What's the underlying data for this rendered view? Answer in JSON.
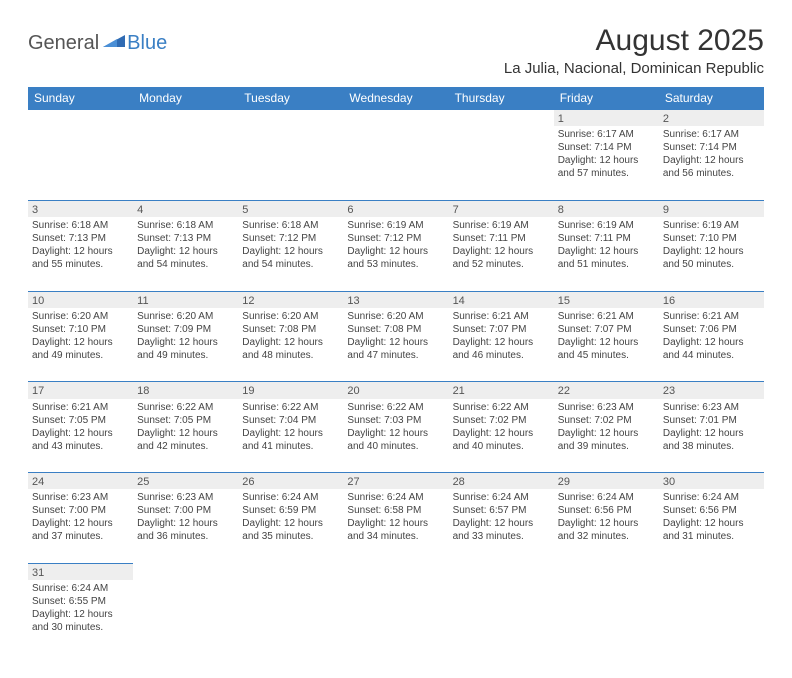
{
  "brand": {
    "general": "General",
    "blue": "Blue"
  },
  "title": "August 2025",
  "location": "La Julia, Nacional, Dominican Republic",
  "header_bg": "#3a7fc4",
  "weekdays": [
    "Sunday",
    "Monday",
    "Tuesday",
    "Wednesday",
    "Thursday",
    "Friday",
    "Saturday"
  ],
  "weeks": [
    [
      null,
      null,
      null,
      null,
      null,
      {
        "n": "1",
        "sr": "Sunrise: 6:17 AM",
        "ss": "Sunset: 7:14 PM",
        "d1": "Daylight: 12 hours",
        "d2": "and 57 minutes."
      },
      {
        "n": "2",
        "sr": "Sunrise: 6:17 AM",
        "ss": "Sunset: 7:14 PM",
        "d1": "Daylight: 12 hours",
        "d2": "and 56 minutes."
      }
    ],
    [
      {
        "n": "3",
        "sr": "Sunrise: 6:18 AM",
        "ss": "Sunset: 7:13 PM",
        "d1": "Daylight: 12 hours",
        "d2": "and 55 minutes."
      },
      {
        "n": "4",
        "sr": "Sunrise: 6:18 AM",
        "ss": "Sunset: 7:13 PM",
        "d1": "Daylight: 12 hours",
        "d2": "and 54 minutes."
      },
      {
        "n": "5",
        "sr": "Sunrise: 6:18 AM",
        "ss": "Sunset: 7:12 PM",
        "d1": "Daylight: 12 hours",
        "d2": "and 54 minutes."
      },
      {
        "n": "6",
        "sr": "Sunrise: 6:19 AM",
        "ss": "Sunset: 7:12 PM",
        "d1": "Daylight: 12 hours",
        "d2": "and 53 minutes."
      },
      {
        "n": "7",
        "sr": "Sunrise: 6:19 AM",
        "ss": "Sunset: 7:11 PM",
        "d1": "Daylight: 12 hours",
        "d2": "and 52 minutes."
      },
      {
        "n": "8",
        "sr": "Sunrise: 6:19 AM",
        "ss": "Sunset: 7:11 PM",
        "d1": "Daylight: 12 hours",
        "d2": "and 51 minutes."
      },
      {
        "n": "9",
        "sr": "Sunrise: 6:19 AM",
        "ss": "Sunset: 7:10 PM",
        "d1": "Daylight: 12 hours",
        "d2": "and 50 minutes."
      }
    ],
    [
      {
        "n": "10",
        "sr": "Sunrise: 6:20 AM",
        "ss": "Sunset: 7:10 PM",
        "d1": "Daylight: 12 hours",
        "d2": "and 49 minutes."
      },
      {
        "n": "11",
        "sr": "Sunrise: 6:20 AM",
        "ss": "Sunset: 7:09 PM",
        "d1": "Daylight: 12 hours",
        "d2": "and 49 minutes."
      },
      {
        "n": "12",
        "sr": "Sunrise: 6:20 AM",
        "ss": "Sunset: 7:08 PM",
        "d1": "Daylight: 12 hours",
        "d2": "and 48 minutes."
      },
      {
        "n": "13",
        "sr": "Sunrise: 6:20 AM",
        "ss": "Sunset: 7:08 PM",
        "d1": "Daylight: 12 hours",
        "d2": "and 47 minutes."
      },
      {
        "n": "14",
        "sr": "Sunrise: 6:21 AM",
        "ss": "Sunset: 7:07 PM",
        "d1": "Daylight: 12 hours",
        "d2": "and 46 minutes."
      },
      {
        "n": "15",
        "sr": "Sunrise: 6:21 AM",
        "ss": "Sunset: 7:07 PM",
        "d1": "Daylight: 12 hours",
        "d2": "and 45 minutes."
      },
      {
        "n": "16",
        "sr": "Sunrise: 6:21 AM",
        "ss": "Sunset: 7:06 PM",
        "d1": "Daylight: 12 hours",
        "d2": "and 44 minutes."
      }
    ],
    [
      {
        "n": "17",
        "sr": "Sunrise: 6:21 AM",
        "ss": "Sunset: 7:05 PM",
        "d1": "Daylight: 12 hours",
        "d2": "and 43 minutes."
      },
      {
        "n": "18",
        "sr": "Sunrise: 6:22 AM",
        "ss": "Sunset: 7:05 PM",
        "d1": "Daylight: 12 hours",
        "d2": "and 42 minutes."
      },
      {
        "n": "19",
        "sr": "Sunrise: 6:22 AM",
        "ss": "Sunset: 7:04 PM",
        "d1": "Daylight: 12 hours",
        "d2": "and 41 minutes."
      },
      {
        "n": "20",
        "sr": "Sunrise: 6:22 AM",
        "ss": "Sunset: 7:03 PM",
        "d1": "Daylight: 12 hours",
        "d2": "and 40 minutes."
      },
      {
        "n": "21",
        "sr": "Sunrise: 6:22 AM",
        "ss": "Sunset: 7:02 PM",
        "d1": "Daylight: 12 hours",
        "d2": "and 40 minutes."
      },
      {
        "n": "22",
        "sr": "Sunrise: 6:23 AM",
        "ss": "Sunset: 7:02 PM",
        "d1": "Daylight: 12 hours",
        "d2": "and 39 minutes."
      },
      {
        "n": "23",
        "sr": "Sunrise: 6:23 AM",
        "ss": "Sunset: 7:01 PM",
        "d1": "Daylight: 12 hours",
        "d2": "and 38 minutes."
      }
    ],
    [
      {
        "n": "24",
        "sr": "Sunrise: 6:23 AM",
        "ss": "Sunset: 7:00 PM",
        "d1": "Daylight: 12 hours",
        "d2": "and 37 minutes."
      },
      {
        "n": "25",
        "sr": "Sunrise: 6:23 AM",
        "ss": "Sunset: 7:00 PM",
        "d1": "Daylight: 12 hours",
        "d2": "and 36 minutes."
      },
      {
        "n": "26",
        "sr": "Sunrise: 6:24 AM",
        "ss": "Sunset: 6:59 PM",
        "d1": "Daylight: 12 hours",
        "d2": "and 35 minutes."
      },
      {
        "n": "27",
        "sr": "Sunrise: 6:24 AM",
        "ss": "Sunset: 6:58 PM",
        "d1": "Daylight: 12 hours",
        "d2": "and 34 minutes."
      },
      {
        "n": "28",
        "sr": "Sunrise: 6:24 AM",
        "ss": "Sunset: 6:57 PM",
        "d1": "Daylight: 12 hours",
        "d2": "and 33 minutes."
      },
      {
        "n": "29",
        "sr": "Sunrise: 6:24 AM",
        "ss": "Sunset: 6:56 PM",
        "d1": "Daylight: 12 hours",
        "d2": "and 32 minutes."
      },
      {
        "n": "30",
        "sr": "Sunrise: 6:24 AM",
        "ss": "Sunset: 6:56 PM",
        "d1": "Daylight: 12 hours",
        "d2": "and 31 minutes."
      }
    ],
    [
      {
        "n": "31",
        "sr": "Sunrise: 6:24 AM",
        "ss": "Sunset: 6:55 PM",
        "d1": "Daylight: 12 hours",
        "d2": "and 30 minutes."
      },
      null,
      null,
      null,
      null,
      null,
      null
    ]
  ]
}
